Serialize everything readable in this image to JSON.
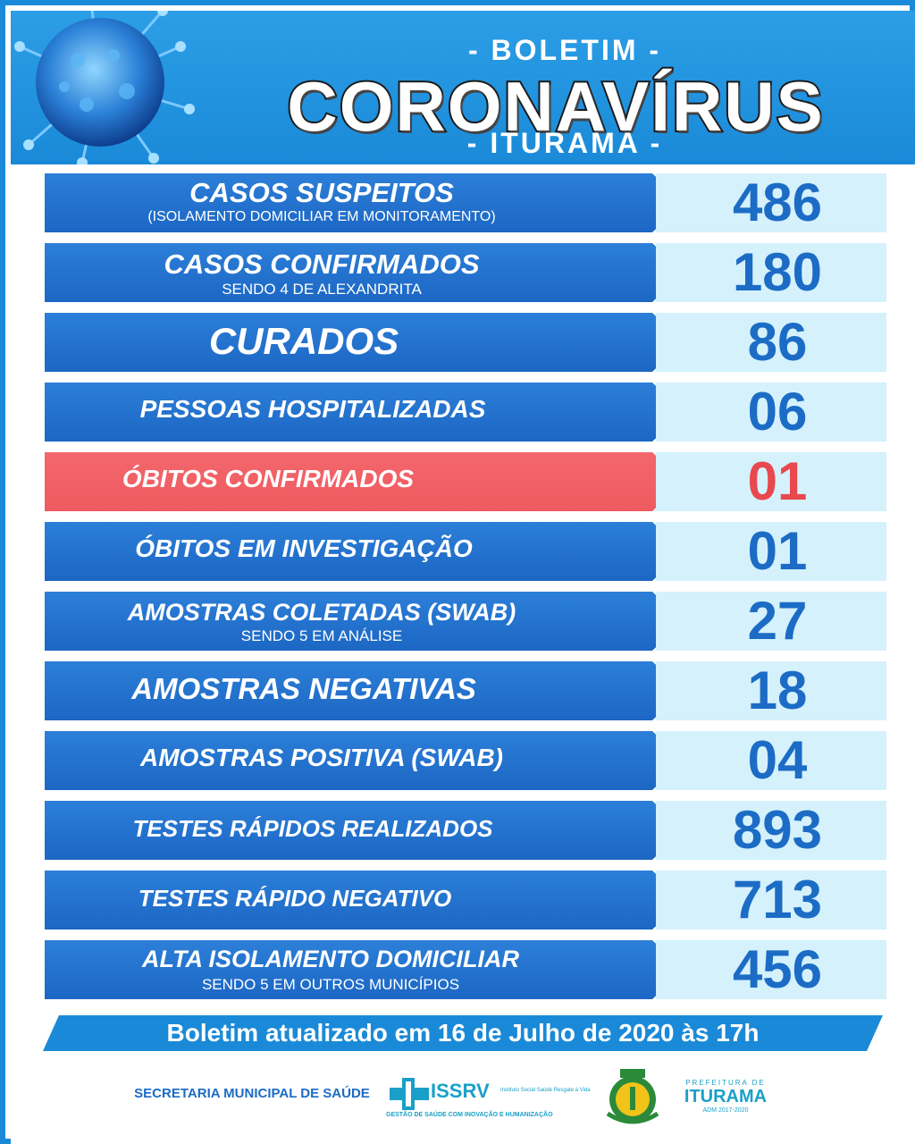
{
  "header": {
    "title_top": "- BOLETIM -",
    "title_main": "CORONAVÍRUS",
    "title_bottom": "- ITURAMA -"
  },
  "rows": [
    {
      "label": "CASOS SUSPEITOS",
      "sub": "(ISOLAMENTO DOMICILIAR EM MONITORAMENTO)",
      "value": "486"
    },
    {
      "label": "CASOS CONFIRMADOS",
      "sub": "SENDO 4 DE ALEXANDRITA",
      "value": "180"
    },
    {
      "label": "CURADOS",
      "sub": "",
      "value": "86"
    },
    {
      "label": "PESSOAS HOSPITALIZADAS",
      "sub": "",
      "value": "06"
    },
    {
      "label": "ÓBITOS CONFIRMADOS",
      "sub": "",
      "value": "01"
    },
    {
      "label": "ÓBITOS EM INVESTIGAÇÃO",
      "sub": "",
      "value": "01"
    },
    {
      "label": "AMOSTRAS COLETADAS (SWAB)",
      "sub": "SENDO 5 EM ANÁLISE",
      "value": "27"
    },
    {
      "label": "AMOSTRAS NEGATIVAS",
      "sub": "",
      "value": "18"
    },
    {
      "label": "AMOSTRAS POSITIVA (SWAB)",
      "sub": "",
      "value": "04"
    },
    {
      "label": "TESTES RÁPIDOS REALIZADOS",
      "sub": "",
      "value": "893"
    },
    {
      "label": "TESTES RÁPIDO NEGATIVO",
      "sub": "",
      "value": "713"
    },
    {
      "label": "ALTA ISOLAMENTO DOMICILIAR",
      "sub": "SENDO 5 EM OUTROS MUNICÍPIOS",
      "value": "456"
    }
  ],
  "footer": {
    "updated": "Boletim atualizado em 16 de Julho de 2020 às 17h",
    "secretaria": "SECRETARIA MUNICIPAL DE SAÚDE",
    "issrv": "ISSRV",
    "issrv_tagline": "Instituto Social Saúde Resgate à Vida",
    "issrv_slogan": "GESTÃO DE SAÚDE COM INOVAÇÃO E HUMANIZAÇÃO",
    "pref_pre": "PREFEITURA DE",
    "pref_name": "ITURAMA",
    "pref_adm": "ADM 2017-2020"
  },
  "colors": {
    "blue": "#1c67c4",
    "red": "#ee5a60",
    "light": "#d4f1fc"
  }
}
